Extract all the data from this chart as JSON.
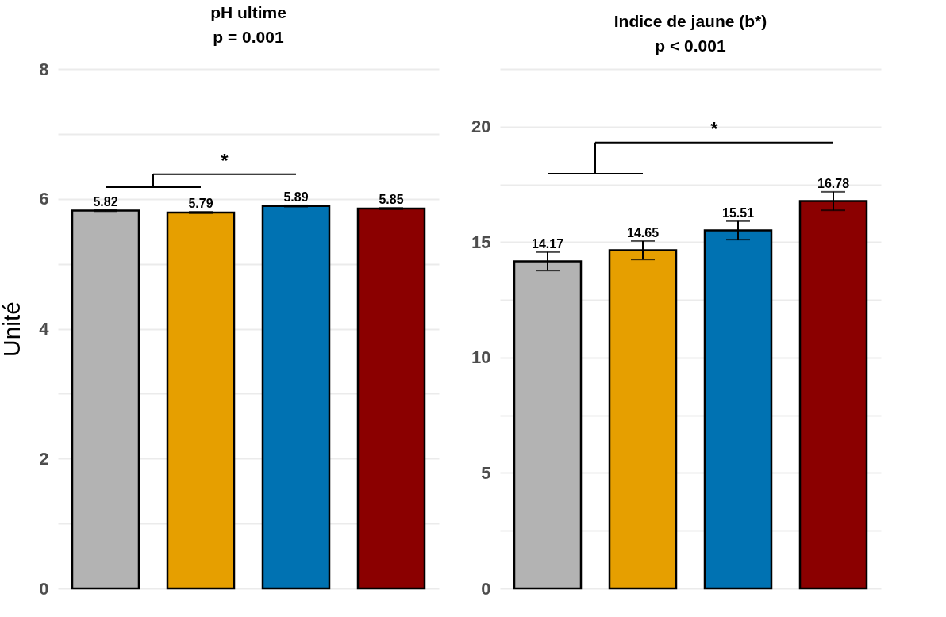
{
  "chart_data": [
    {
      "type": "bar",
      "title": "pH ultime",
      "subtitle": "p = 0.001",
      "ylabel": "Unité",
      "categories": [
        null,
        null,
        null,
        null
      ],
      "colors": [
        "#b3b3b3",
        "#e69f00",
        "#0072b2",
        "#8b0000"
      ],
      "values": [
        5.82,
        5.79,
        5.89,
        5.85
      ],
      "errors": [
        0.01,
        0.01,
        0.01,
        0.01
      ],
      "ylim": [
        0,
        8
      ],
      "yticks": [
        0,
        {
          "value": 1,
          "label": null
        },
        2,
        {
          "value": 3,
          "label": null
        },
        4,
        {
          "value": 5,
          "label": null
        },
        6,
        {
          "value": 7,
          "label": null
        },
        8
      ],
      "grid": "y",
      "data_labels": true,
      "tick_labels": "y",
      "annotations": [
        "*"
      ]
    },
    {
      "type": "bar",
      "title": "Indice de jaune (b*)",
      "subtitle": "p < 0.001",
      "categories": [
        null,
        null,
        null,
        null
      ],
      "colors": [
        "#b3b3b3",
        "#e69f00",
        "#0072b2",
        "#8b0000"
      ],
      "values": [
        14.17,
        14.65,
        15.51,
        16.78
      ],
      "errors": [
        0.4,
        0.4,
        0.4,
        0.4
      ],
      "ylim": [
        0,
        22.5
      ],
      "yticks": [
        0,
        {
          "value": 2.5,
          "label": null
        },
        5,
        {
          "value": 7.5,
          "label": null
        },
        10,
        {
          "value": 12.5,
          "label": null
        },
        15,
        {
          "value": 17.5,
          "label": null
        },
        20,
        {
          "value": 22.5,
          "label": null
        }
      ],
      "grid": "y",
      "data_labels": true,
      "tick_labels": "y",
      "annotations": [
        "*"
      ]
    }
  ]
}
